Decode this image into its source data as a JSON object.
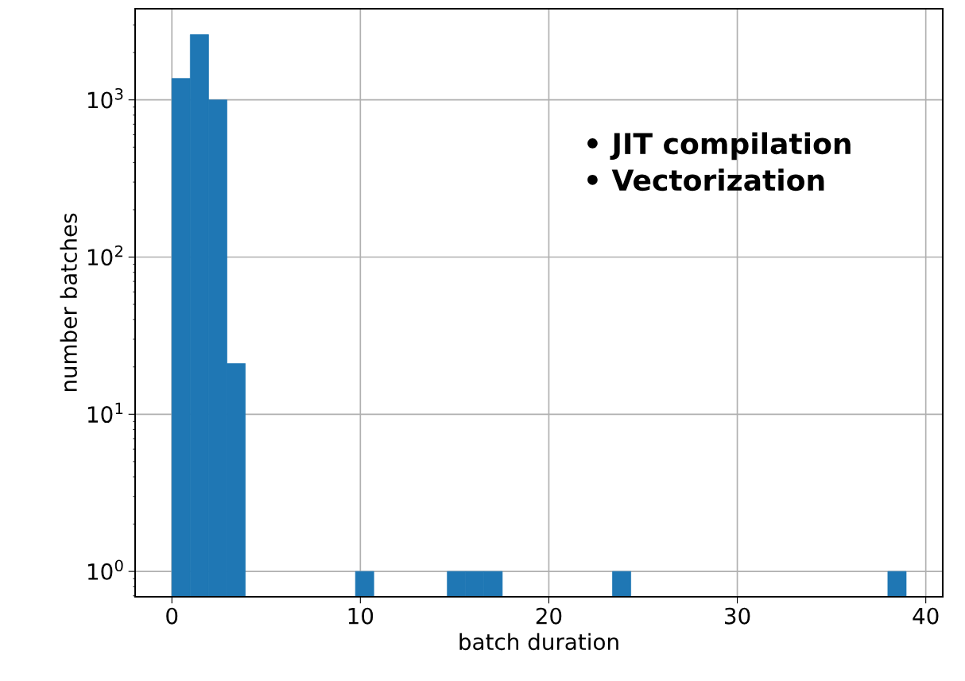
{
  "chart_data": {
    "type": "histogram",
    "xlabel": "batch duration",
    "ylabel": "number batches",
    "bins": [
      0,
      0.974,
      1.948,
      2.922,
      3.896,
      4.87,
      5.844,
      6.818,
      7.792,
      8.766,
      9.74,
      10.714,
      11.688,
      12.662,
      13.636,
      14.61,
      15.584,
      16.558,
      17.532,
      18.506,
      19.48,
      20.454,
      21.428,
      22.402,
      23.376,
      24.35,
      25.324,
      26.298,
      27.272,
      28.246,
      29.22,
      30.194,
      31.168,
      32.142,
      33.116,
      34.09,
      35.064,
      36.038,
      37.012,
      37.986,
      38.96
    ],
    "values": [
      1370,
      2600,
      1000,
      21,
      null,
      null,
      null,
      null,
      null,
      null,
      1,
      null,
      null,
      null,
      null,
      1,
      1,
      1,
      null,
      null,
      null,
      null,
      null,
      null,
      1,
      null,
      null,
      null,
      null,
      null,
      null,
      null,
      null,
      null,
      null,
      null,
      null,
      null,
      null,
      1
    ],
    "color": "#1f77b4",
    "log": "y",
    "grid": true,
    "xlim": [
      -1.95,
      40.9
    ],
    "xticks": [
      0,
      10,
      20,
      30,
      40
    ],
    "ylim": [
      0.69,
      3800
    ],
    "yticks": [
      {
        "value": 1,
        "label": "10$^{0}$"
      },
      {
        "value": 10,
        "label": "10$^{1}$"
      },
      {
        "value": 100,
        "label": "10$^{2}$"
      },
      {
        "value": 1000,
        "label": "10$^{3}$"
      }
    ],
    "annotations": [
      "• JIT compilation\n• Vectorization"
    ]
  }
}
